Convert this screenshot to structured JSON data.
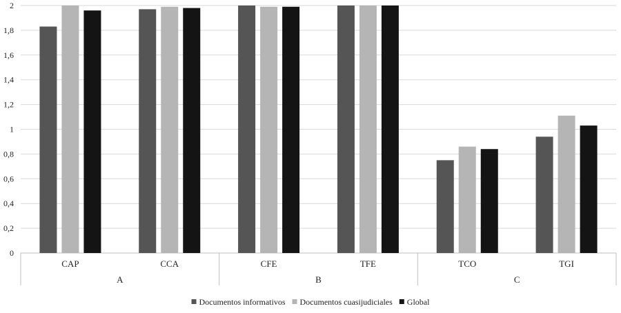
{
  "chart_data": {
    "type": "bar",
    "title": "",
    "xlabel": "",
    "ylabel": "",
    "ylim": [
      0,
      2
    ],
    "y_ticks": [
      "0",
      "0,2",
      "0,4",
      "0,6",
      "0,8",
      "1",
      "1,2",
      "1,4",
      "1,6",
      "1,8",
      "2"
    ],
    "grid": true,
    "legend_position": "bottom",
    "categories": [
      "CAP",
      "CCA",
      "CFE",
      "TFE",
      "TCO",
      "TGI"
    ],
    "groups": [
      {
        "label": "A",
        "categories": [
          "CAP",
          "CCA"
        ]
      },
      {
        "label": "B",
        "categories": [
          "CFE",
          "TFE"
        ]
      },
      {
        "label": "C",
        "categories": [
          "TCO",
          "TGI"
        ]
      }
    ],
    "series": [
      {
        "name": "Documentos informativos",
        "color": "#555555",
        "values": [
          1.83,
          1.97,
          2.0,
          2.0,
          0.75,
          0.94
        ]
      },
      {
        "name": "Documentos cuasijudiciales",
        "color": "#b5b5b5",
        "values": [
          2.0,
          1.99,
          1.99,
          2.0,
          0.86,
          1.11
        ]
      },
      {
        "name": "Global",
        "color": "#141414",
        "values": [
          1.96,
          1.98,
          1.99,
          2.0,
          0.84,
          1.03
        ]
      }
    ]
  }
}
